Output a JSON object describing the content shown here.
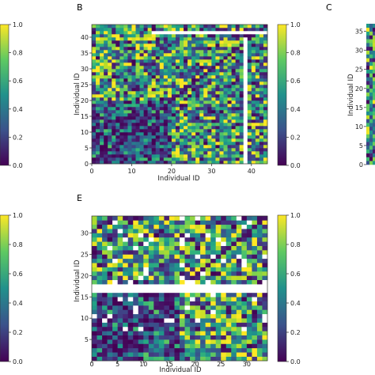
{
  "colors": {
    "colormap": "viridis",
    "missing": "#ffffff",
    "axis": "#222222"
  },
  "chart_data": [
    {
      "id": "B",
      "panel_label": "B",
      "type": "heatmap",
      "xlabel": "Individual ID",
      "ylabel": "Individual ID",
      "n": 44,
      "xlim": [
        0,
        44
      ],
      "ylim": [
        0,
        44
      ],
      "x_ticks": [
        "0",
        "10",
        "20",
        "30",
        "40"
      ],
      "y_ticks": [
        "0",
        "5",
        "10",
        "15",
        "20",
        "25",
        "30",
        "35",
        "40"
      ],
      "colorbar": {
        "vmin": 0.0,
        "vmax": 1.0,
        "ticks": [
          "0.0",
          "0.2",
          "0.4",
          "0.6",
          "0.8",
          "1.0"
        ]
      },
      "missing_rows": [
        41
      ],
      "missing_cols": [
        38
      ],
      "missing_row_x_range": [
        15,
        44
      ],
      "missing_col_y_range": [
        0,
        40
      ],
      "lower_block_extent": 20
    },
    {
      "id": "E",
      "panel_label": "E",
      "type": "heatmap",
      "xlabel": "Individual ID",
      "ylabel": "Individual ID",
      "n": 34,
      "xlim": [
        0,
        34
      ],
      "ylim": [
        0,
        34
      ],
      "x_ticks": [
        "0",
        "5",
        "10",
        "15",
        "20",
        "25",
        "30"
      ],
      "y_ticks": [
        "5",
        "10",
        "15",
        "20",
        "25",
        "30"
      ],
      "colorbar": {
        "vmin": 0.0,
        "vmax": 1.0,
        "ticks": [
          "0.0",
          "0.2",
          "0.4",
          "0.6",
          "0.8",
          "1.0"
        ]
      },
      "missing_rows": [
        16,
        17
      ],
      "missing_cols": [],
      "lower_block_extent": 17
    },
    {
      "id": "C",
      "panel_label": "C",
      "type": "heatmap",
      "ylabel": "Individual ID",
      "y_ticks": [
        "0",
        "5",
        "10",
        "15",
        "20",
        "25",
        "30",
        "35"
      ]
    },
    {
      "id": "colorbar-left-top",
      "type": "colorbar",
      "ticks": [
        "0.0",
        "0.2",
        "0.4",
        "0.6",
        "0.8",
        "1.0"
      ]
    },
    {
      "id": "colorbar-left-bottom",
      "type": "colorbar",
      "ticks": [
        "0.0",
        "0.2",
        "0.4",
        "0.6",
        "0.8",
        "1.0"
      ]
    }
  ]
}
